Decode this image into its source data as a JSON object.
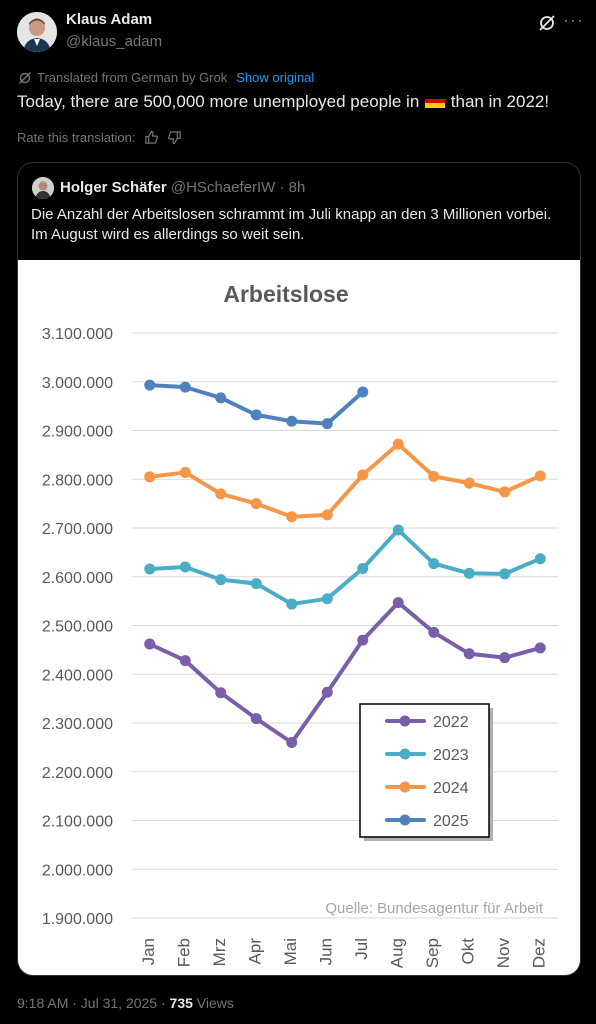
{
  "author": {
    "name": "Klaus Adam",
    "handle": "@klaus_adam"
  },
  "translation": {
    "note": "Translated from German by Grok",
    "show_original": "Show original",
    "rate_label": "Rate this translation:"
  },
  "tweet": {
    "text_before": "Today, there are 500,000 more unemployed people in",
    "text_after": "than in 2022!"
  },
  "quote": {
    "name": "Holger Schäfer",
    "handle": "@HSchaeferIW",
    "time": "8h",
    "text": "Die Anzahl der Arbeitslosen schrammt im Juli knapp an den 3 Millionen vorbei. Im August wird es allerdings so weit sein."
  },
  "footer": {
    "time": "9:18 AM · Jul 31, 2025 · ",
    "views_count": "735",
    "views_label": " Views"
  },
  "chart_data": {
    "type": "line",
    "title": "Arbeitslose",
    "source": "Quelle: Bundesagentur für Arbeit",
    "categories": [
      "Jan",
      "Feb",
      "Mrz",
      "Apr",
      "Mai",
      "Jun",
      "Jul",
      "Aug",
      "Sep",
      "Okt",
      "Nov",
      "Dez"
    ],
    "yticks": [
      "3.100.000",
      "3.000.000",
      "2.900.000",
      "2.800.000",
      "2.700.000",
      "2.600.000",
      "2.500.000",
      "2.400.000",
      "2.300.000",
      "2.200.000",
      "2.100.000",
      "2.000.000",
      "1.900.000"
    ],
    "ylim": [
      1900000,
      3100000
    ],
    "grid": true,
    "legend_position": "bottom-right",
    "series": [
      {
        "name": "2022",
        "color": "#7b5ea7",
        "values": [
          2462000,
          2428000,
          2362000,
          2309000,
          2260000,
          2363000,
          2470000,
          2547000,
          2486000,
          2442000,
          2434000,
          2454000
        ]
      },
      {
        "name": "2023",
        "color": "#4bacc6",
        "values": [
          2616000,
          2620000,
          2594000,
          2586000,
          2544000,
          2555000,
          2617000,
          2696000,
          2627000,
          2607000,
          2606000,
          2637000
        ]
      },
      {
        "name": "2024",
        "color": "#f79646",
        "values": [
          2805000,
          2814000,
          2770000,
          2750000,
          2723000,
          2727000,
          2809000,
          2872000,
          2806000,
          2792000,
          2774000,
          2807000
        ]
      },
      {
        "name": "2025",
        "color": "#4f81bd",
        "values": [
          2993000,
          2989000,
          2967000,
          2932000,
          2919000,
          2914000,
          2979000,
          null,
          null,
          null,
          null,
          null
        ]
      }
    ]
  }
}
